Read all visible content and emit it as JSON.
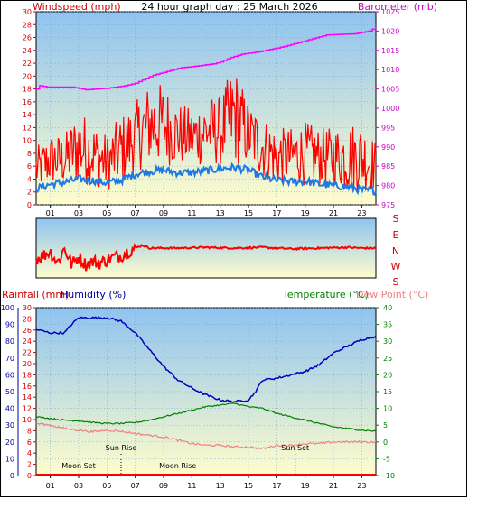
{
  "header": {
    "title": "24 hour graph day : 25 March 2026",
    "left_label": "Windspeed (mph)",
    "right_label": "Barometer (mb)"
  },
  "colors": {
    "wind": "#ff0000",
    "wind_avg": "#1e78e6",
    "barometer": "#ff00ff",
    "direction": "#ff0000",
    "humidity": "#0000c0",
    "temperature": "#008000",
    "dewpoint": "#f08080",
    "rainfall": "#ff0000",
    "axis_red": "#d00000",
    "axis_blue": "#0000a0",
    "axis_green": "#008000",
    "bg_top": "#8fc3f0",
    "bg_bottom": "#fffdcc"
  },
  "chart_data": [
    {
      "type": "line",
      "name": "wind-barometer",
      "x_ticks": [
        "01",
        "03",
        "05",
        "07",
        "09",
        "11",
        "13",
        "15",
        "17",
        "19",
        "21",
        "23"
      ],
      "xlim": [
        0,
        24
      ],
      "y_left": {
        "label": "Windspeed (mph)",
        "lim": [
          0,
          30
        ],
        "ticks": [
          0,
          2,
          4,
          6,
          8,
          10,
          12,
          14,
          16,
          18,
          20,
          22,
          24,
          26,
          28,
          30
        ]
      },
      "y_right": {
        "label": "Barometer (mb)",
        "lim": [
          975,
          1025
        ],
        "ticks": [
          975,
          980,
          985,
          990,
          995,
          1000,
          1005,
          1010,
          1015,
          1020,
          1025
        ]
      },
      "barometer": {
        "x": [
          0,
          0.3,
          0.6,
          2.5,
          3.5,
          5.0,
          6.2,
          7.0,
          8.2,
          10.2,
          11.5,
          12.5,
          13.0,
          13.6,
          14.5,
          15.5,
          16.2,
          17.5,
          18.5,
          19.5,
          20.5,
          22.5,
          23.5,
          24
        ],
        "y": [
          1005,
          1006,
          1005.5,
          1005.5,
          1004.8,
          1005.2,
          1005.8,
          1006.5,
          1008.5,
          1010.5,
          1011,
          1011.5,
          1012,
          1013,
          1014,
          1014.5,
          1015,
          1016,
          1017,
          1018,
          1019,
          1019.3,
          1020,
          1021
        ]
      },
      "wind_avg": {
        "x": [
          0,
          1,
          2,
          3,
          4,
          5,
          6,
          7,
          8,
          9,
          10,
          11,
          12,
          13,
          14,
          15,
          16,
          17,
          18,
          19,
          20,
          21,
          22,
          23,
          24
        ],
        "y": [
          2.5,
          3.2,
          3.5,
          4.0,
          3.8,
          3.4,
          3.8,
          4.8,
          5.2,
          5.4,
          5.0,
          5.0,
          5.3,
          5.6,
          5.8,
          5.4,
          4.3,
          3.8,
          3.6,
          3.7,
          3.2,
          3.0,
          2.8,
          2.3,
          2.2
        ]
      },
      "wind_gust_band": {
        "x": [
          0,
          1,
          2,
          3,
          4,
          5,
          6,
          7,
          8,
          9,
          10,
          11,
          12,
          13,
          14,
          15,
          16,
          17,
          18,
          19,
          20,
          21,
          22,
          23,
          24
        ],
        "low": [
          2,
          3,
          3,
          3,
          3,
          2,
          3,
          5,
          6,
          6,
          6,
          6,
          6,
          6,
          6,
          6,
          4,
          3,
          3,
          3,
          3,
          3,
          2,
          2,
          2
        ],
        "high": [
          9,
          11,
          11,
          15,
          13,
          11,
          14,
          16,
          19,
          19,
          16,
          15,
          17,
          17,
          22,
          16,
          14,
          12,
          12,
          13,
          12,
          12,
          13,
          13,
          10
        ]
      }
    },
    {
      "type": "line",
      "name": "wind-direction",
      "labels": [
        "S",
        "E",
        "N",
        "W",
        "S"
      ],
      "x": [
        0,
        0.5,
        1,
        1.5,
        2,
        2.5,
        3,
        3.5,
        4,
        4.5,
        5,
        5.5,
        6,
        6.5,
        7,
        7.5,
        8,
        10,
        12,
        14,
        16,
        18,
        20,
        22,
        23,
        24
      ],
      "y": [
        1.3,
        1.5,
        1.8,
        1.0,
        2.0,
        0.9,
        1.4,
        0.9,
        1.1,
        1.0,
        1.2,
        1.4,
        1.5,
        1.8,
        2.0,
        2.2,
        2.0,
        2.0,
        2.05,
        2.0,
        2.05,
        1.95,
        2.0,
        2.05,
        2.0,
        2.0
      ],
      "ylim": [
        0,
        4
      ]
    },
    {
      "type": "line",
      "name": "rain-humidity-temp",
      "x_ticks": [
        "01",
        "03",
        "05",
        "07",
        "09",
        "11",
        "13",
        "15",
        "17",
        "19",
        "21",
        "23"
      ],
      "xlim": [
        0,
        24
      ],
      "left_labels": {
        "rainfall": "Rainfall (mm)",
        "humidity": "Humidity (%)"
      },
      "right_labels": {
        "temperature": "Temperature (°C)",
        "dewpoint": "Dew Point (°C)"
      },
      "y_humidity": {
        "lim": [
          0,
          100
        ],
        "ticks": [
          0,
          10,
          20,
          30,
          40,
          50,
          60,
          70,
          80,
          90,
          100
        ]
      },
      "y_rainfall": {
        "lim": [
          0,
          30
        ],
        "ticks": [
          0,
          2,
          4,
          6,
          8,
          10,
          12,
          14,
          16,
          18,
          20,
          22,
          24,
          26,
          28,
          30
        ]
      },
      "y_temperature": {
        "lim": [
          -10,
          40
        ],
        "ticks": [
          -10,
          -5,
          0,
          5,
          10,
          15,
          20,
          25,
          30,
          35,
          40
        ]
      },
      "humidity": {
        "x": [
          0,
          1,
          2,
          2.5,
          3,
          4,
          5,
          6,
          7,
          8,
          9,
          10,
          11,
          12,
          13,
          14,
          15,
          15.5,
          16,
          17,
          18,
          19,
          20,
          21,
          22,
          23,
          24
        ],
        "y": [
          87,
          85,
          85,
          90,
          94,
          94,
          94,
          92,
          85,
          75,
          65,
          57,
          52,
          48,
          45,
          44,
          45,
          50,
          57,
          58,
          60,
          62,
          66,
          73,
          77,
          81,
          83
        ]
      },
      "temperature": {
        "x": [
          0,
          1,
          2,
          3,
          4,
          5,
          6,
          7,
          8,
          9,
          10,
          11,
          12,
          13,
          14,
          15,
          16,
          17,
          18,
          19,
          20,
          21,
          22,
          23,
          24
        ],
        "y": [
          7.5,
          7.0,
          6.5,
          6.3,
          5.8,
          5.5,
          5.5,
          5.8,
          6.5,
          7.5,
          8.5,
          9.5,
          10.5,
          11,
          11.5,
          10.5,
          10,
          8.5,
          7.5,
          6.5,
          5.5,
          4.5,
          4,
          3.5,
          3.2
        ]
      },
      "dewpoint": {
        "x": [
          0,
          1,
          2,
          3,
          4,
          5,
          6,
          7,
          8,
          9,
          10,
          11,
          12,
          13,
          14,
          15,
          16,
          17,
          18,
          19,
          20,
          21,
          22,
          23,
          24
        ],
        "y": [
          5.5,
          5,
          4,
          3.5,
          3,
          3.5,
          3.2,
          2.5,
          2,
          1.5,
          0.5,
          -0.5,
          -1,
          -1,
          -1.5,
          -1.5,
          -2,
          -1,
          -1,
          -0.5,
          -0.5,
          0,
          0,
          0,
          0
        ]
      },
      "rainfall": {
        "x": [
          0,
          24
        ],
        "y": [
          0,
          0
        ]
      },
      "annotations": [
        {
          "text": "Sun Rise",
          "x": 6.0,
          "marker_x": 6.0
        },
        {
          "text": "Sun Set",
          "x": 18.3,
          "marker_x": 18.3
        },
        {
          "text": "Moon Set",
          "x": 3.0
        },
        {
          "text": "Moon Rise",
          "x": 10.0
        }
      ]
    }
  ]
}
